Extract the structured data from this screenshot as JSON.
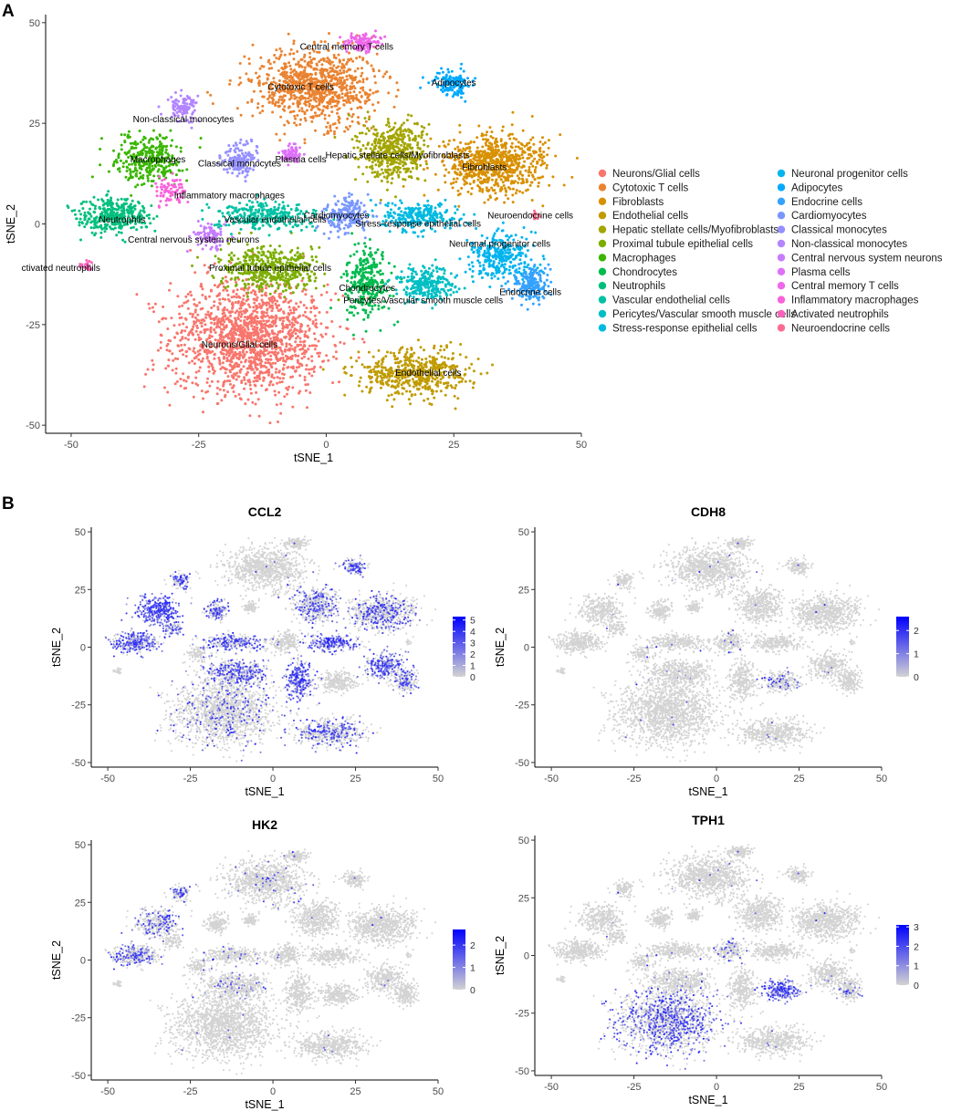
{
  "panel_a_label": "A",
  "panel_b_label": "B",
  "chart_data": [
    {
      "type": "scatter",
      "panel": "A",
      "title": "",
      "xlabel": "tSNE_1",
      "ylabel": "tSNE_2",
      "xlim": [
        -55,
        50
      ],
      "ylim": [
        -52,
        52
      ],
      "xticks": [
        -50,
        -25,
        0,
        25,
        50
      ],
      "yticks": [
        -50,
        -25,
        0,
        25,
        50
      ],
      "grid": false,
      "legend_position": "right",
      "clusters": [
        {
          "name": "Neurons/Glial cells",
          "color": "#F8766D",
          "center": [
            -15,
            -28
          ],
          "spread": [
            14,
            13
          ],
          "n": 1500,
          "label": "Neurons/Glial cells",
          "label_pos": [
            -17,
            -30
          ]
        },
        {
          "name": "Cytotoxic T cells",
          "color": "#EA8331",
          "center": [
            -2,
            34
          ],
          "spread": [
            11,
            8
          ],
          "n": 900,
          "label": "Cytotoxic T cells",
          "label_pos": [
            -5,
            34
          ]
        },
        {
          "name": "Fibroblasts",
          "color": "#D89000",
          "center": [
            33,
            15
          ],
          "spread": [
            9,
            7
          ],
          "n": 700,
          "label": "Fibroblasts",
          "label_pos": [
            31,
            14
          ]
        },
        {
          "name": "Endothelial cells",
          "color": "#C09B00",
          "center": [
            17,
            -37
          ],
          "spread": [
            10,
            5
          ],
          "n": 500,
          "label": "Endothelial cells",
          "label_pos": [
            20,
            -37
          ]
        },
        {
          "name": "Hepatic stellate cells/Myofibroblasts",
          "color": "#A3A500",
          "center": [
            13,
            18
          ],
          "spread": [
            6,
            7
          ],
          "n": 450,
          "label": "Hepatic stellate cells/Myofibroblasts",
          "label_pos": [
            14,
            17
          ]
        },
        {
          "name": "Proximal tubule epithelial cells",
          "color": "#7CAE00",
          "center": [
            -11,
            -11
          ],
          "spread": [
            9,
            5
          ],
          "n": 450,
          "label": "Proximal tubule epithelial cells",
          "label_pos": [
            -11,
            -11
          ]
        },
        {
          "name": "Macrophages",
          "color": "#39B600",
          "center": [
            -35,
            16
          ],
          "spread": [
            6,
            5
          ],
          "n": 320,
          "label": "Macrophages",
          "label_pos": [
            -33,
            16
          ]
        },
        {
          "name": "Chondrocytes",
          "color": "#00BB4E",
          "center": [
            8,
            -14
          ],
          "spread": [
            4,
            8
          ],
          "n": 300,
          "label": "Chondrocytes",
          "label_pos": [
            8,
            -16
          ]
        },
        {
          "name": "Neutrophils",
          "color": "#00BF7D",
          "center": [
            -42,
            2
          ],
          "spread": [
            6,
            4
          ],
          "n": 350,
          "label": "Neutrophils",
          "label_pos": [
            -40,
            1
          ]
        },
        {
          "name": "Vascular endothelial cells",
          "color": "#00C1A3",
          "center": [
            -12,
            2
          ],
          "spread": [
            9,
            3
          ],
          "n": 280,
          "label": "Vascular endothelial cells",
          "label_pos": [
            -10,
            1
          ]
        },
        {
          "name": "Pericytes/Vascular smooth muscle cells",
          "color": "#00BFC4",
          "center": [
            20,
            -15
          ],
          "spread": [
            5,
            4
          ],
          "n": 260,
          "label": "Pericytes/Vascular smooth muscle cells",
          "label_pos": [
            19,
            -19
          ]
        },
        {
          "name": "Stress-response epithelial cells",
          "color": "#00BAE0",
          "center": [
            18,
            2
          ],
          "spread": [
            7,
            3
          ],
          "n": 260,
          "label": "Stress-response epithelial cells",
          "label_pos": [
            18,
            0
          ]
        },
        {
          "name": "Neuronal progenitor cells",
          "color": "#00B4EF",
          "center": [
            34,
            -8
          ],
          "spread": [
            6,
            5
          ],
          "n": 300,
          "label": "Neuronal progenitor cells",
          "label_pos": [
            34,
            -5
          ]
        },
        {
          "name": "Adipocytes",
          "color": "#00A9FF",
          "center": [
            25,
            35
          ],
          "spread": [
            3,
            3
          ],
          "n": 140,
          "label": "Adipocytes",
          "label_pos": [
            25,
            35
          ]
        },
        {
          "name": "Endocrine cells",
          "color": "#35A2FF",
          "center": [
            40,
            -15
          ],
          "spread": [
            3,
            4
          ],
          "n": 180,
          "label": "Endocrine cells",
          "label_pos": [
            40,
            -17
          ]
        },
        {
          "name": "Cardiomyocytes",
          "color": "#7997FF",
          "center": [
            4,
            2
          ],
          "spread": [
            4,
            4
          ],
          "n": 200,
          "label": "Cardiomyocytes",
          "label_pos": [
            2,
            2
          ]
        },
        {
          "name": "Classical monocytes",
          "color": "#9590FF",
          "center": [
            -17,
            16
          ],
          "spread": [
            3,
            4
          ],
          "n": 150,
          "label": "Classical monocytes",
          "label_pos": [
            -17,
            15
          ]
        },
        {
          "name": "Non-classical monocytes",
          "color": "#B385FF",
          "center": [
            -28,
            29
          ],
          "spread": [
            2.5,
            3
          ],
          "n": 110,
          "label": "Non-classical monocytes",
          "label_pos": [
            -28,
            26
          ]
        },
        {
          "name": "Central nervous system neurons",
          "color": "#C77CFF",
          "center": [
            -23,
            -3
          ],
          "spread": [
            3,
            2.5
          ],
          "n": 90,
          "label": "Central nervous system neurons",
          "label_pos": [
            -26,
            -4
          ]
        },
        {
          "name": "Plasma cells",
          "color": "#DE71F9",
          "center": [
            -7,
            17
          ],
          "spread": [
            1.8,
            2.2
          ],
          "n": 80,
          "label": "Plasma cells",
          "label_pos": [
            -5,
            16
          ]
        },
        {
          "name": "Central memory T cells",
          "color": "#EF67EB",
          "center": [
            7,
            45
          ],
          "spread": [
            3,
            2
          ],
          "n": 120,
          "label": "Central memory T cells",
          "label_pos": [
            4,
            44
          ]
        },
        {
          "name": "Inflammatory macrophages",
          "color": "#FA62DB",
          "center": [
            -30,
            8
          ],
          "spread": [
            3,
            3
          ],
          "n": 80,
          "label": "Inflammatory macrophages",
          "label_pos": [
            -19,
            7
          ]
        },
        {
          "name": "Activated neutrophils",
          "color": "#FF62BC",
          "center": [
            -47,
            -10
          ],
          "spread": [
            1,
            1
          ],
          "n": 20,
          "label": "ctivated neutrophils",
          "label_pos": [
            -52,
            -11
          ]
        },
        {
          "name": "Neuroendocrine cells",
          "color": "#FF6C91",
          "center": [
            41,
            2
          ],
          "spread": [
            1,
            1
          ],
          "n": 12,
          "label": "Neuroendocrine cells",
          "label_pos": [
            40,
            2
          ]
        }
      ]
    },
    {
      "type": "scatter",
      "panel": "B",
      "title": "CCL2",
      "xlabel": "tSNE_1",
      "ylabel": "tSNE_2",
      "xlim": [
        -55,
        50
      ],
      "ylim": [
        -52,
        52
      ],
      "xticks": [
        -50,
        -25,
        0,
        25,
        50
      ],
      "yticks": [
        -50,
        -25,
        0,
        25,
        50
      ],
      "colorbar": {
        "min": 0,
        "max": 5.3,
        "ticks": [
          0,
          1,
          2,
          3,
          4,
          5
        ],
        "low_color": "#D3D3D3",
        "high_color": "#0000FF"
      },
      "expression": {
        "Macrophages": 0.9,
        "Neutrophils": 0.6,
        "Stress-response epithelial cells": 0.7,
        "Neuronal progenitor cells": 0.65,
        "Chondrocytes": 0.7,
        "Proximal tubule epithelial cells": 0.45,
        "Vascular endothelial cells": 0.5,
        "Endothelial cells": 0.35,
        "Hepatic stellate cells/Myofibroblasts": 0.35,
        "Fibroblasts": 0.3,
        "Adipocytes": 0.5,
        "Classical monocytes": 0.5,
        "Non-classical monocytes": 0.4,
        "Inflammatory macrophages": 0.6,
        "Neurons/Glial cells": 0.12,
        "Endocrine cells": 0.3
      }
    },
    {
      "type": "scatter",
      "panel": "B",
      "title": "CDH8",
      "xlabel": "tSNE_1",
      "ylabel": "tSNE_2",
      "xlim": [
        -55,
        50
      ],
      "ylim": [
        -52,
        52
      ],
      "xticks": [
        -50,
        -25,
        0,
        25,
        50
      ],
      "yticks": [
        -50,
        -25,
        0,
        25,
        50
      ],
      "colorbar": {
        "min": 0,
        "max": 2.6,
        "ticks": [
          0,
          1,
          2
        ],
        "low_color": "#D3D3D3",
        "high_color": "#0000FF"
      },
      "expression": {
        "Pericytes/Vascular smooth muscle cells": 0.15,
        "Cardiomyocytes": 0.05
      }
    },
    {
      "type": "scatter",
      "panel": "B",
      "title": "HK2",
      "xlabel": "tSNE_1",
      "ylabel": "tSNE_2",
      "xlim": [
        -55,
        50
      ],
      "ylim": [
        -52,
        52
      ],
      "xticks": [
        -50,
        -25,
        0,
        25,
        50
      ],
      "yticks": [
        -50,
        -25,
        0,
        25,
        50
      ],
      "colorbar": {
        "min": 0,
        "max": 2.7,
        "ticks": [
          0,
          1,
          2
        ],
        "low_color": "#D3D3D3",
        "high_color": "#0000FF"
      },
      "expression": {
        "Neutrophils": 0.35,
        "Macrophages": 0.3,
        "Non-classical monocytes": 0.25,
        "Proximal tubule epithelial cells": 0.08,
        "Vascular endothelial cells": 0.08,
        "Cytotoxic T cells": 0.04
      }
    },
    {
      "type": "scatter",
      "panel": "B",
      "title": "TPH1",
      "xlabel": "tSNE_1",
      "ylabel": "tSNE_2",
      "xlim": [
        -55,
        50
      ],
      "ylim": [
        -52,
        52
      ],
      "xticks": [
        -50,
        -25,
        0,
        25,
        50
      ],
      "yticks": [
        -50,
        -25,
        0,
        25,
        50
      ],
      "colorbar": {
        "min": 0,
        "max": 3.1,
        "ticks": [
          0,
          1,
          2,
          3
        ],
        "low_color": "#D3D3D3",
        "high_color": "#0000FF"
      },
      "expression": {
        "Neurons/Glial cells": 0.35,
        "Pericytes/Vascular smooth muscle cells": 0.7,
        "Cardiomyocytes": 0.1,
        "Endocrine cells": 0.12
      }
    }
  ]
}
